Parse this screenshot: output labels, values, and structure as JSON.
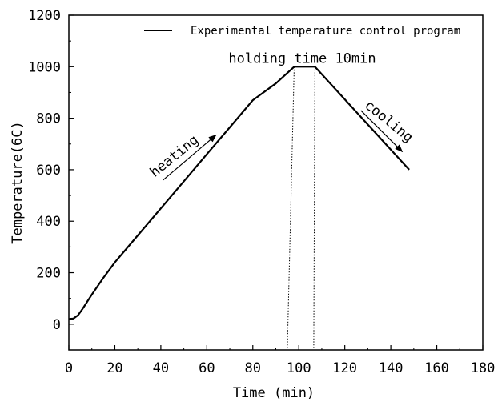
{
  "chart_data": {
    "type": "line",
    "xlabel": "Time (min)",
    "ylabel": "Temperature(6C)",
    "xlim": [
      0,
      180
    ],
    "ylim": [
      -100,
      1200
    ],
    "xticks": [
      0,
      20,
      40,
      60,
      80,
      100,
      120,
      140,
      160,
      180
    ],
    "yticks": [
      0,
      200,
      400,
      600,
      800,
      1000,
      1200
    ],
    "grid": false,
    "legend": {
      "placement": "top-right"
    },
    "series": [
      {
        "name": "Experimental temperature control program",
        "color": "#000000",
        "x": [
          0,
          2,
          4,
          6,
          10,
          15,
          20,
          30,
          40,
          50,
          60,
          70,
          80,
          90,
          98,
          107,
          148
        ],
        "y": [
          20,
          22,
          35,
          60,
          115,
          180,
          240,
          345,
          450,
          555,
          660,
          765,
          870,
          935,
          1000,
          1000,
          600
        ]
      }
    ],
    "vlines": [
      {
        "x_top": 98,
        "x_bottom": 95
      },
      {
        "x_top": 107,
        "x_bottom": 106.5
      }
    ],
    "annotations": [
      {
        "text": "holding time 10min",
        "x": 101.5,
        "y": 1015
      },
      {
        "text": "heating",
        "x": 47,
        "y": 640,
        "angle": -39,
        "arrow": {
          "from": [
            41,
            560
          ],
          "to": [
            64,
            735
          ]
        }
      },
      {
        "text": "cooling",
        "x": 138,
        "y": 775,
        "angle": 39,
        "arrow": {
          "from": [
            127,
            830
          ],
          "to": [
            145,
            670
          ]
        }
      }
    ]
  }
}
